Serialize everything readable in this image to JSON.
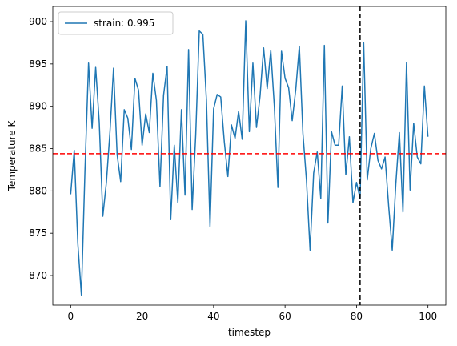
{
  "chart_data": {
    "type": "line",
    "xlabel": "timestep",
    "ylabel": "Temperature K",
    "xlim": [
      -5,
      105
    ],
    "ylim": [
      866.5,
      901.8
    ],
    "xticks": [
      0,
      20,
      40,
      60,
      80,
      100
    ],
    "yticks": [
      870,
      875,
      880,
      885,
      890,
      895,
      900
    ],
    "grid": false,
    "legend_position": "top-left",
    "series": [
      {
        "name": "strain: 0.995",
        "color": "#1f77b4",
        "x": [
          0,
          1,
          2,
          3,
          4,
          5,
          6,
          7,
          8,
          9,
          10,
          11,
          12,
          13,
          14,
          15,
          16,
          17,
          18,
          19,
          20,
          21,
          22,
          23,
          24,
          25,
          26,
          27,
          28,
          29,
          30,
          31,
          32,
          33,
          34,
          35,
          36,
          37,
          38,
          39,
          40,
          41,
          42,
          43,
          44,
          45,
          46,
          47,
          48,
          49,
          50,
          51,
          52,
          53,
          54,
          55,
          56,
          57,
          58,
          59,
          60,
          61,
          62,
          63,
          64,
          65,
          66,
          67,
          68,
          69,
          70,
          71,
          72,
          73,
          74,
          75,
          76,
          77,
          78,
          79,
          80,
          81,
          82,
          83,
          84,
          85,
          86,
          87,
          88,
          89,
          90,
          91,
          92,
          93,
          94,
          95,
          96,
          97,
          98,
          99,
          100
        ],
        "y": [
          879.6,
          884.8,
          873.8,
          867.7,
          882.4,
          895.1,
          887.4,
          894.6,
          888.1,
          877.0,
          881.0,
          887.0,
          894.5,
          884.3,
          881.1,
          889.6,
          888.6,
          884.9,
          893.3,
          891.9,
          885.4,
          889.1,
          886.9,
          893.9,
          890.7,
          880.5,
          891.3,
          894.7,
          876.6,
          885.4,
          878.6,
          889.6,
          879.5,
          896.7,
          877.8,
          886.6,
          898.9,
          898.5,
          890.7,
          875.8,
          889.7,
          891.4,
          891.1,
          885.8,
          881.7,
          887.8,
          886.2,
          889.4,
          886.1,
          900.1,
          887.0,
          895.1,
          887.5,
          891.2,
          896.9,
          892.1,
          896.6,
          890.0,
          880.4,
          896.5,
          893.3,
          892.2,
          888.3,
          892.0,
          897.1,
          886.8,
          881.2,
          873.0,
          882.1,
          884.6,
          879.1,
          897.2,
          876.2,
          887.0,
          885.4,
          885.4,
          892.4,
          881.9,
          886.4,
          878.6,
          881.0,
          879.1,
          897.5,
          881.3,
          885.0,
          886.8,
          883.6,
          882.6,
          884.0,
          878.2,
          873.0,
          880.8,
          886.9,
          877.5,
          895.2,
          880.1,
          888.0,
          884.0,
          883.2,
          892.4,
          886.4
        ]
      }
    ],
    "annotations": [
      {
        "type": "hline",
        "y": 884.4,
        "color": "#ff0000",
        "style": "dashed"
      },
      {
        "type": "vline",
        "x": 81,
        "color": "#000000",
        "style": "dashed"
      }
    ]
  }
}
